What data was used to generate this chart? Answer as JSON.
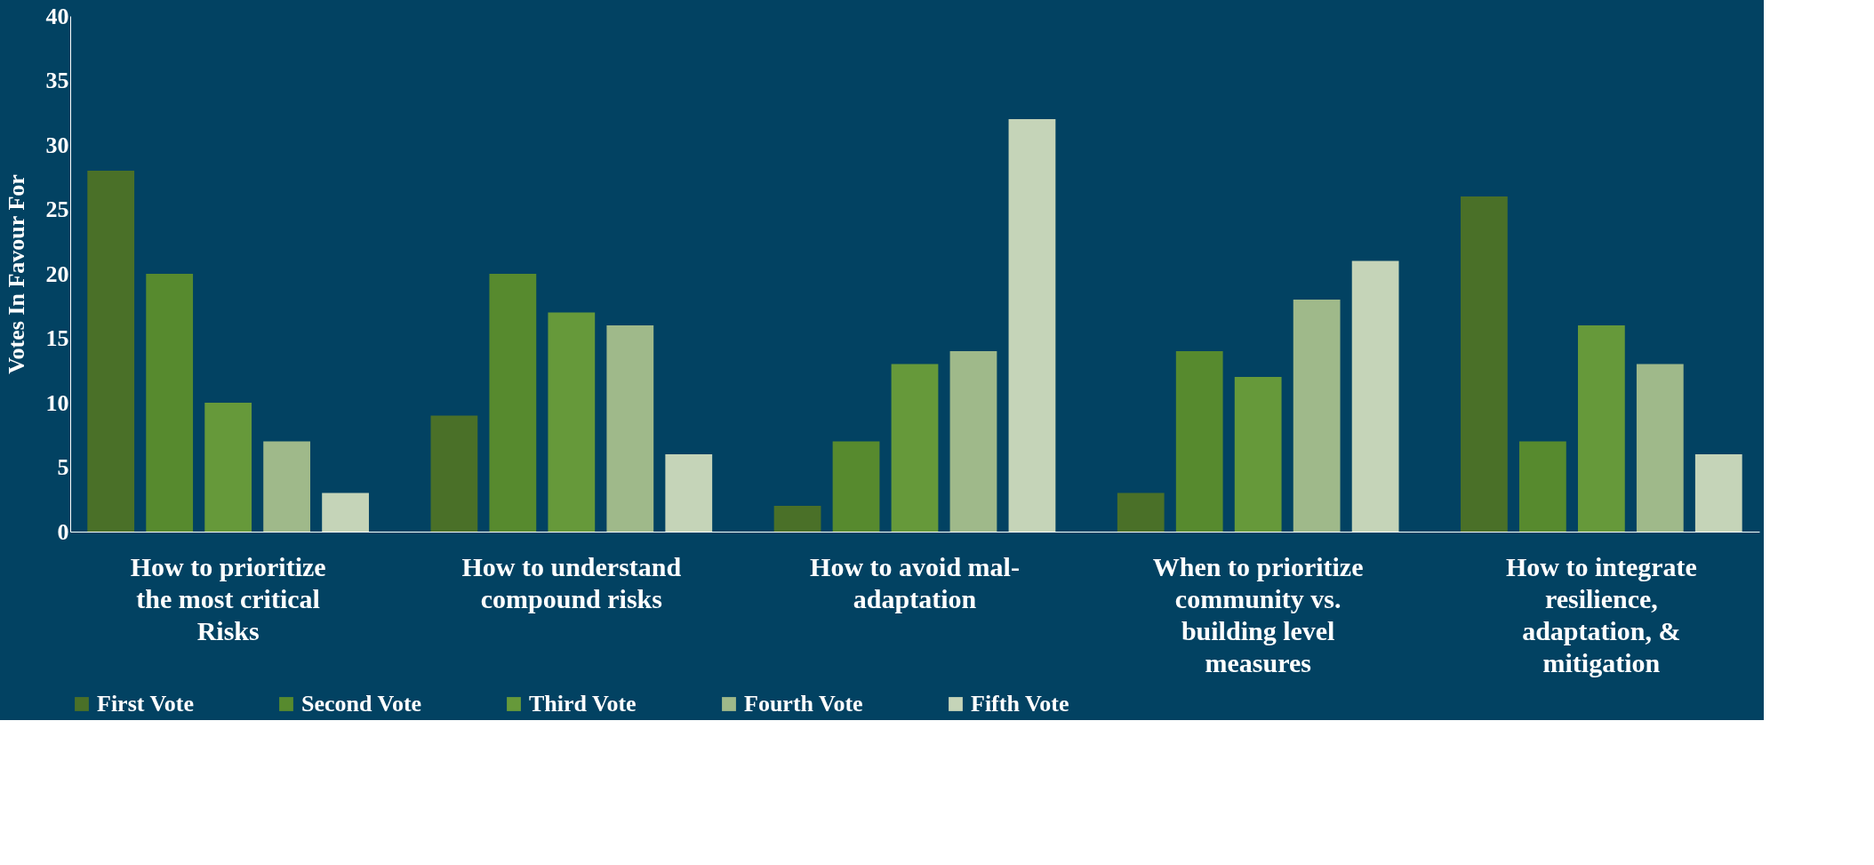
{
  "chart_data": {
    "type": "bar",
    "ylabel": "Votes In Favour For",
    "categories": [
      "How to prioritize the most critical Risks",
      "How to understand compound risks",
      "How to avoid mal-adaptation",
      "When to prioritize community vs. building level measures",
      "How to integrate resilience, adaptation, & mitigation"
    ],
    "series": [
      {
        "name": "First Vote",
        "color": "#4a7028",
        "values": [
          28,
          9,
          2,
          3,
          26
        ]
      },
      {
        "name": "Second Vote",
        "color": "#578a2e",
        "values": [
          20,
          20,
          7,
          14,
          7
        ]
      },
      {
        "name": "Third Vote",
        "color": "#66993a",
        "values": [
          10,
          17,
          13,
          12,
          16
        ]
      },
      {
        "name": "Fourth Vote",
        "color": "#9fb98a",
        "values": [
          7,
          16,
          14,
          18,
          13
        ]
      },
      {
        "name": "Fifth Vote",
        "color": "#c5d4b8",
        "values": [
          3,
          6,
          32,
          21,
          6
        ]
      }
    ],
    "ylim": [
      0,
      40
    ],
    "yticks": [
      0,
      5,
      10,
      15,
      20,
      25,
      30,
      35,
      40
    ],
    "grid": false,
    "legend": "bottom"
  }
}
